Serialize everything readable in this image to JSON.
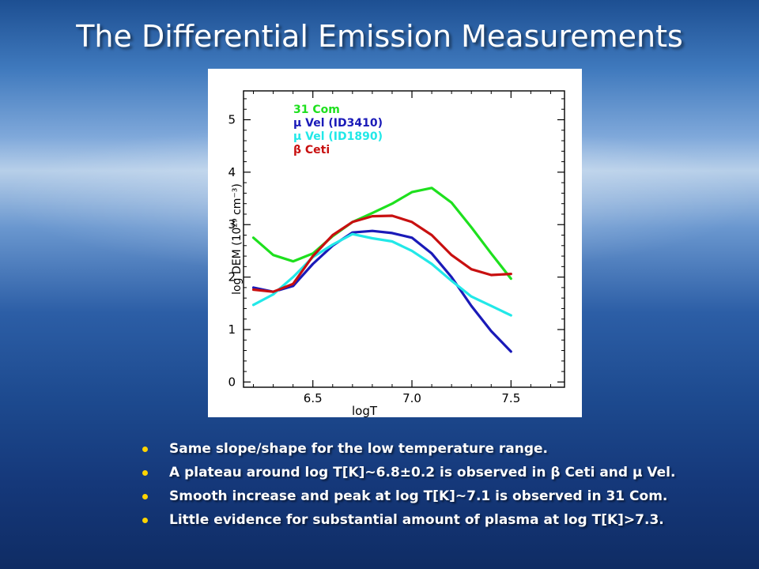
{
  "slide": {
    "title": "The Differential Emission Measurements",
    "bullets": [
      "Same slope/shape for the low temperature range.",
      "A plateau around log T[K]~6.8±0.2 is observed in β Ceti and μ Vel.",
      "Smooth increase and peak at log T[K]~7.1 is observed in 31 Com.",
      "Little evidence for substantial amount of plasma at log T[K]>7.3."
    ],
    "bullet_color": "#ffd400"
  },
  "chart_data": {
    "type": "line",
    "xlabel": "logT",
    "ylabel": "log DEM (10²⁹ cm⁻³)",
    "xlim": [
      6.15,
      7.77
    ],
    "ylim": [
      -0.1,
      5.55
    ],
    "xticks": [
      6.5,
      7.0,
      7.5
    ],
    "xtick_labels": [
      "6.5",
      "7.0",
      "7.5"
    ],
    "yticks": [
      0,
      1,
      2,
      3,
      4,
      5
    ],
    "ytick_labels": [
      "0",
      "1",
      "2",
      "3",
      "4",
      "5"
    ],
    "grid": false,
    "legend_position": "top-left",
    "series": [
      {
        "name": "31 Com",
        "color": "#1ee01e",
        "x": [
          6.2,
          6.3,
          6.4,
          6.5,
          6.6,
          6.7,
          6.8,
          6.9,
          7.0,
          7.1,
          7.2,
          7.3,
          7.4,
          7.5
        ],
        "y": [
          2.75,
          2.42,
          2.3,
          2.45,
          2.78,
          3.05,
          3.22,
          3.4,
          3.62,
          3.7,
          3.42,
          2.95,
          2.45,
          1.97
        ]
      },
      {
        "name": "μ Vel (ID3410)",
        "color": "#1a1ab8",
        "x": [
          6.2,
          6.3,
          6.4,
          6.5,
          6.6,
          6.7,
          6.8,
          6.9,
          7.0,
          7.1,
          7.2,
          7.3,
          7.4,
          7.5
        ],
        "y": [
          1.8,
          1.72,
          1.83,
          2.25,
          2.6,
          2.85,
          2.88,
          2.84,
          2.75,
          2.45,
          2.0,
          1.45,
          0.97,
          0.58
        ]
      },
      {
        "name": "μ Vel (ID1890)",
        "color": "#22e8e8",
        "x": [
          6.2,
          6.3,
          6.4,
          6.5,
          6.6,
          6.7,
          6.8,
          6.9,
          7.0,
          7.1,
          7.2,
          7.3,
          7.4,
          7.5
        ],
        "y": [
          1.47,
          1.67,
          2.0,
          2.38,
          2.62,
          2.82,
          2.74,
          2.68,
          2.5,
          2.25,
          1.93,
          1.63,
          1.45,
          1.27
        ]
      },
      {
        "name": "β Ceti",
        "color": "#c81010",
        "x": [
          6.2,
          6.3,
          6.4,
          6.5,
          6.6,
          6.7,
          6.8,
          6.9,
          7.0,
          7.1,
          7.2,
          7.3,
          7.4,
          7.5
        ],
        "y": [
          1.76,
          1.72,
          1.87,
          2.4,
          2.8,
          3.05,
          3.16,
          3.17,
          3.05,
          2.8,
          2.42,
          2.15,
          2.04,
          2.06
        ]
      }
    ]
  }
}
